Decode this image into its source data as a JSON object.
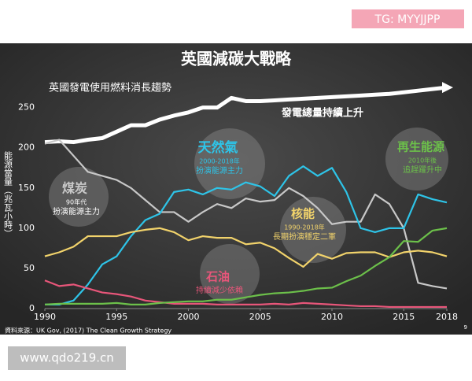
{
  "page": {
    "tag": "TG: MYYJJPP",
    "source": "資料來源：UK Gov, (2017) The Clean Growth Strategy",
    "page_number": "9",
    "watermark": "www.qdo219.cn"
  },
  "chart_data": {
    "type": "line",
    "title": "英國減碳大戰略",
    "subtitle": "英國發電使用燃料消長趨勢",
    "y_label": "能源當量（兆瓦小時）",
    "x": [
      1990,
      1991,
      1992,
      1993,
      1994,
      1995,
      1996,
      1997,
      1998,
      1999,
      2000,
      2001,
      2002,
      2003,
      2004,
      2005,
      2006,
      2007,
      2008,
      2009,
      2010,
      2011,
      2012,
      2013,
      2014,
      2015,
      2016,
      2017,
      2018
    ],
    "xlim": [
      1990,
      2018
    ],
    "xticks": [
      1990,
      1995,
      2000,
      2005,
      2010,
      2015,
      2018
    ],
    "ylim": [
      0,
      280
    ],
    "yticks": [
      0,
      50,
      100,
      150,
      200,
      250
    ],
    "grid": false,
    "series": [
      {
        "name": "發電總量持續上升",
        "color": "#ffffff",
        "values": [
          207,
          208,
          207,
          210,
          212,
          220,
          228,
          228,
          235,
          240,
          244,
          250,
          250,
          262,
          258,
          258,
          259,
          260,
          261,
          262,
          263,
          264,
          265,
          266,
          267,
          269,
          271,
          273,
          275
        ],
        "notes": []
      },
      {
        "name": "煤炭",
        "color": "#c8c8c8",
        "values": [
          205,
          210,
          190,
          170,
          165,
          160,
          150,
          135,
          120,
          120,
          108,
          120,
          130,
          125,
          137,
          133,
          135,
          150,
          140,
          125,
          105,
          108,
          108,
          142,
          130,
          100,
          32,
          28,
          25
        ],
        "notes": [
          "90年代",
          "扮演能源主力"
        ]
      },
      {
        "name": "天然氣",
        "color": "#2ec4e8",
        "values": [
          5,
          5,
          10,
          30,
          55,
          65,
          90,
          110,
          118,
          145,
          148,
          142,
          150,
          148,
          157,
          152,
          140,
          165,
          177,
          165,
          175,
          145,
          100,
          95,
          100,
          100,
          142,
          136,
          132
        ],
        "notes": [
          "2000-2018年",
          "扮演能源主力"
        ]
      },
      {
        "name": "核能",
        "color": "#f2d36b",
        "values": [
          65,
          70,
          77,
          90,
          90,
          90,
          95,
          98,
          100,
          95,
          85,
          90,
          88,
          88,
          80,
          82,
          75,
          63,
          52,
          68,
          62,
          69,
          70,
          70,
          64,
          70,
          72,
          70,
          65
        ],
        "notes": [
          "1990-2018年",
          "長期扮演穩定二軍"
        ]
      },
      {
        "name": "石油",
        "color": "#e8567a",
        "values": [
          35,
          28,
          30,
          25,
          20,
          18,
          15,
          10,
          8,
          6,
          6,
          6,
          5,
          5,
          5,
          5,
          6,
          5,
          7,
          6,
          5,
          4,
          3,
          3,
          2,
          2,
          2,
          2,
          2
        ],
        "notes": [
          "持續減少依賴"
        ]
      },
      {
        "name": "再生能源",
        "color": "#6cc04a",
        "values": [
          5,
          6,
          6,
          6,
          6,
          7,
          5,
          5,
          7,
          8,
          9,
          9,
          11,
          11,
          14,
          17,
          19,
          20,
          22,
          25,
          26,
          34,
          41,
          53,
          64,
          84,
          83,
          97,
          100
        ],
        "notes": [
          "2010年後",
          "追趕躍升中"
        ]
      }
    ]
  }
}
